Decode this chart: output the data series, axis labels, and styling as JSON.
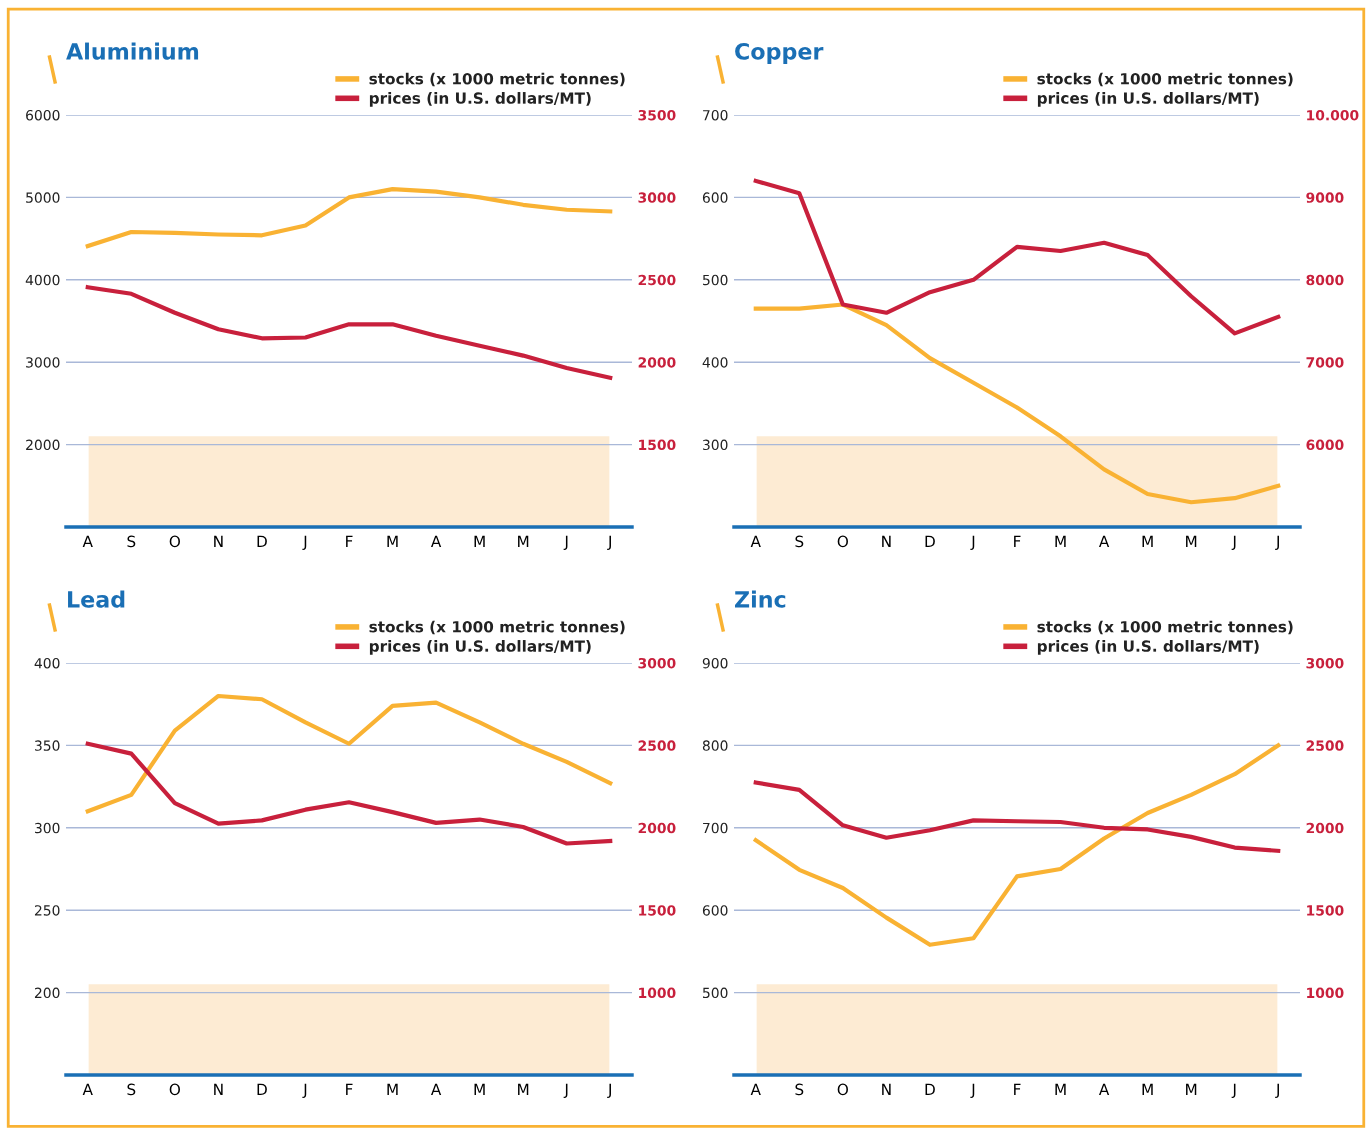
{
  "chart_data": [
    {
      "type": "line",
      "title": "Aluminium",
      "categories": [
        "A",
        "S",
        "O",
        "N",
        "D",
        "J",
        "F",
        "M",
        "A",
        "M",
        "M",
        "J",
        "J"
      ],
      "ylim": [
        1000,
        6000
      ],
      "yticks": [
        2000,
        3000,
        4000,
        5000,
        6000
      ],
      "y2lim": [
        1000,
        3500
      ],
      "y2ticks": [
        1500,
        2000,
        2500,
        3000,
        3500
      ],
      "grid": "y",
      "legend": "top right",
      "bands": [
        {
          "axis": "y",
          "from": 1000,
          "to": 2100,
          "color": "#fdebd3"
        }
      ],
      "series": [
        {
          "name": "stocks (x 1000 metric tonnes)",
          "color": "#f9b233",
          "values": [
            4410,
            4580,
            4570,
            4550,
            4540,
            4660,
            5000,
            5100,
            5070,
            5000,
            4910,
            4850,
            4830
          ]
        },
        {
          "name": "prices (in U.S. dollars/MT)",
          "color": "#c8203c",
          "axis": "y2",
          "values": [
            2455,
            2415,
            2300,
            2200,
            2145,
            2150,
            2230,
            2230,
            2160,
            2100,
            2040,
            1965,
            1905
          ]
        }
      ]
    },
    {
      "type": "line",
      "title": "Copper",
      "categories": [
        "A",
        "S",
        "O",
        "N",
        "D",
        "J",
        "F",
        "M",
        "A",
        "M",
        "M",
        "J",
        "J"
      ],
      "ylim": [
        200,
        700
      ],
      "yticks": [
        300,
        400,
        500,
        600,
        700
      ],
      "y2lim": [
        5000,
        10000
      ],
      "y2ticks": [
        6000,
        7000,
        8000,
        9000,
        {
          "value": 10000,
          "label": "10.000"
        }
      ],
      "grid": "y",
      "legend": "top right",
      "bands": [
        {
          "axis": "y",
          "from": 200,
          "to": 310,
          "color": "#fdebd3"
        }
      ],
      "series": [
        {
          "name": "stocks (x 1000 metric tonnes)",
          "color": "#f9b233",
          "values": [
            465,
            465,
            470,
            445,
            405,
            375,
            345,
            310,
            270,
            240,
            230,
            235,
            250
          ]
        },
        {
          "name": "prices (in U.S. dollars/MT)",
          "color": "#c8203c",
          "axis": "y2",
          "values": [
            9200,
            9050,
            7700,
            7600,
            7850,
            8000,
            8400,
            8350,
            8450,
            8300,
            7800,
            7350,
            7550
          ]
        }
      ]
    },
    {
      "type": "line",
      "title": "Lead",
      "categories": [
        "A",
        "S",
        "O",
        "N",
        "D",
        "J",
        "F",
        "M",
        "A",
        "M",
        "M",
        "J",
        "J"
      ],
      "ylim": [
        150,
        400
      ],
      "yticks": [
        200,
        250,
        300,
        350,
        400
      ],
      "y2lim": [
        500,
        3000
      ],
      "y2ticks": [
        1000,
        1500,
        2000,
        2500,
        3000
      ],
      "grid": "y",
      "legend": "top right",
      "bands": [
        {
          "axis": "y",
          "from": 150,
          "to": 205,
          "color": "#fdebd3"
        }
      ],
      "series": [
        {
          "name": "stocks (x 1000 metric tonnes)",
          "color": "#f9b233",
          "values": [
            310,
            320,
            359,
            380,
            378,
            364,
            351,
            374,
            376,
            364,
            351,
            340,
            327
          ]
        },
        {
          "name": "prices (in U.S. dollars/MT)",
          "color": "#c8203c",
          "axis": "y2",
          "values": [
            2510,
            2450,
            2150,
            2025,
            2045,
            2110,
            2155,
            2095,
            2030,
            2050,
            2005,
            1905,
            1920
          ]
        }
      ]
    },
    {
      "type": "line",
      "title": "Zinc",
      "categories": [
        "A",
        "S",
        "O",
        "N",
        "D",
        "J",
        "F",
        "M",
        "A",
        "M",
        "M",
        "J",
        "J"
      ],
      "ylim": [
        400,
        900
      ],
      "yticks": [
        500,
        600,
        700,
        800,
        900
      ],
      "y2lim": [
        500,
        3000
      ],
      "y2ticks": [
        1000,
        1500,
        2000,
        2500,
        3000
      ],
      "grid": "y",
      "legend": "top right",
      "bands": [
        {
          "axis": "y",
          "from": 400,
          "to": 510,
          "color": "#fdebd3"
        }
      ],
      "series": [
        {
          "name": "stocks (x 1000 metric tonnes)",
          "color": "#f9b233",
          "values": [
            685,
            649,
            627,
            591,
            558,
            566,
            641,
            650,
            687,
            718,
            740,
            765,
            800
          ]
        },
        {
          "name": "prices (in U.S. dollars/MT)",
          "color": "#c8203c",
          "axis": "y2",
          "values": [
            2275,
            2230,
            2015,
            1940,
            1985,
            2045,
            2040,
            2035,
            2000,
            1990,
            1945,
            1880,
            1860
          ]
        }
      ]
    }
  ]
}
